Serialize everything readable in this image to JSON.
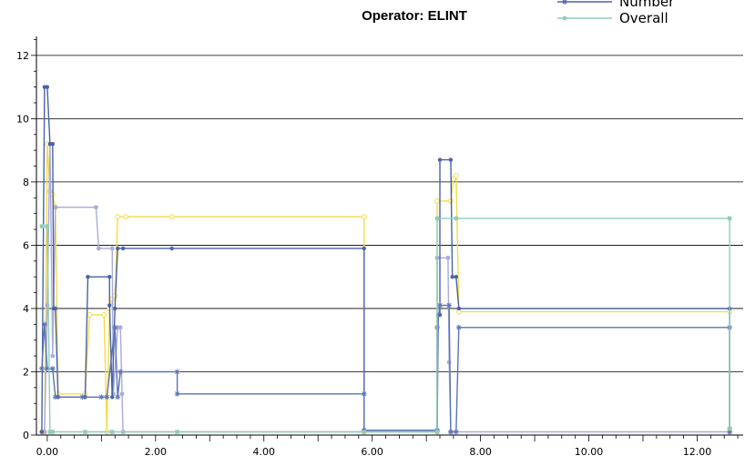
{
  "chart_data": {
    "type": "line",
    "title": "Operator: ELINT",
    "xlabel": "",
    "ylabel": "",
    "xlim": [
      -0.2,
      12.85
    ],
    "ylim": [
      0,
      12.6
    ],
    "grid": "horizontal",
    "legend_placement": "top-right",
    "x_ticks": [
      0,
      2,
      4,
      6,
      8,
      10,
      12
    ],
    "x_tick_labels": [
      "0.00",
      "2.00",
      "4.00",
      "6.00",
      "8.00",
      "10.00",
      "12.00"
    ],
    "y_ticks": [
      0,
      2,
      4,
      6,
      8,
      10,
      12
    ],
    "y_tick_labels": [
      "0",
      "2",
      "4",
      "6",
      "8",
      "10",
      "12"
    ],
    "legend": [
      {
        "label": "Number",
        "color": "#4a62a8",
        "marker": "star"
      },
      {
        "label": "Overall",
        "color": "#8ecdbb",
        "marker": "circle"
      }
    ],
    "series": [
      {
        "color": "#f2dc4a",
        "marker": "circle-open",
        "points": [
          [
            -0.1,
            0.1
          ],
          [
            -0.05,
            0.1
          ],
          [
            0,
            9.2
          ],
          [
            0.05,
            7.7
          ],
          [
            0.1,
            7.6
          ],
          [
            0.15,
            7.2
          ],
          [
            0.2,
            1.3
          ],
          [
            0.7,
            1.3
          ],
          [
            0.78,
            3.8
          ],
          [
            1.05,
            3.8
          ],
          [
            1.1,
            0.1
          ],
          [
            1.15,
            4.0
          ],
          [
            1.2,
            4.3
          ],
          [
            1.25,
            4.4
          ],
          [
            1.3,
            6.9
          ],
          [
            1.45,
            6.9
          ],
          [
            2.3,
            6.9
          ],
          [
            5.85,
            6.9
          ],
          [
            5.85,
            0.1
          ],
          [
            7.2,
            0.1
          ],
          [
            7.2,
            7.4
          ],
          [
            7.45,
            7.4
          ],
          [
            7.5,
            8.1
          ],
          [
            7.55,
            8.2
          ],
          [
            7.6,
            3.9
          ],
          [
            12.6,
            3.9
          ],
          [
            12.6,
            0.2
          ]
        ]
      },
      {
        "color": "#a9abd8",
        "marker": "circle",
        "points": [
          [
            -0.1,
            0.1
          ],
          [
            -0.05,
            0.1
          ],
          [
            0,
            4.1
          ],
          [
            0.05,
            9.2
          ],
          [
            0.1,
            2.5
          ],
          [
            0.15,
            7.2
          ],
          [
            0.9,
            7.2
          ],
          [
            0.95,
            5.9
          ],
          [
            1.2,
            5.9
          ],
          [
            1.22,
            1.3
          ],
          [
            1.3,
            3.4
          ],
          [
            1.35,
            3.4
          ],
          [
            1.38,
            1.3
          ],
          [
            1.4,
            0.1
          ],
          [
            7.2,
            0.1
          ],
          [
            7.2,
            5.6
          ],
          [
            7.4,
            5.6
          ],
          [
            7.42,
            2.3
          ],
          [
            7.45,
            0.1
          ],
          [
            12.6,
            0.1
          ]
        ]
      },
      {
        "color": "#4a62a8",
        "marker": "dot",
        "points": [
          [
            -0.1,
            0.1
          ],
          [
            -0.05,
            11.0
          ],
          [
            0,
            11.0
          ],
          [
            0.05,
            9.2
          ],
          [
            0.1,
            9.2
          ],
          [
            0.12,
            4.0
          ],
          [
            0.15,
            4.0
          ],
          [
            0.2,
            1.2
          ],
          [
            0.7,
            1.2
          ],
          [
            0.75,
            5.0
          ],
          [
            1.15,
            5.0
          ],
          [
            1.15,
            4.1
          ],
          [
            1.2,
            1.2
          ],
          [
            1.25,
            4.0
          ],
          [
            1.3,
            5.9
          ],
          [
            1.4,
            5.9
          ],
          [
            2.3,
            5.9
          ],
          [
            5.85,
            5.9
          ],
          [
            5.85,
            0.15
          ],
          [
            7.2,
            0.15
          ],
          [
            7.22,
            3.8
          ],
          [
            7.25,
            3.8
          ],
          [
            7.25,
            8.7
          ],
          [
            7.45,
            8.7
          ],
          [
            7.48,
            5.0
          ],
          [
            7.55,
            5.0
          ],
          [
            7.6,
            4.0
          ],
          [
            12.6,
            4.0
          ],
          [
            12.6,
            0.2
          ]
        ]
      },
      {
        "color": "#5b73b5",
        "marker": "star",
        "points": [
          [
            -0.1,
            2.1
          ],
          [
            -0.05,
            3.5
          ],
          [
            0,
            2.1
          ],
          [
            0.1,
            2.1
          ],
          [
            0.15,
            1.2
          ],
          [
            0.65,
            1.2
          ],
          [
            1.0,
            1.2
          ],
          [
            1.1,
            1.2
          ],
          [
            1.25,
            3.4
          ],
          [
            1.3,
            1.2
          ],
          [
            1.35,
            2.0
          ],
          [
            2.4,
            2.0
          ],
          [
            2.4,
            1.3
          ],
          [
            5.85,
            1.3
          ],
          [
            5.85,
            0.15
          ],
          [
            7.2,
            0.15
          ],
          [
            7.2,
            3.4
          ],
          [
            7.25,
            4.1
          ],
          [
            7.42,
            4.1
          ],
          [
            7.45,
            0.1
          ],
          [
            7.55,
            0.1
          ],
          [
            7.6,
            3.4
          ],
          [
            12.6,
            3.4
          ],
          [
            12.6,
            0.1
          ]
        ]
      },
      {
        "color": "#8ecdbb",
        "marker": "square",
        "points": [
          [
            -0.1,
            6.6
          ],
          [
            0,
            6.6
          ],
          [
            0.05,
            0.1
          ],
          [
            0.1,
            0.1
          ],
          [
            0.7,
            0.1
          ],
          [
            1.2,
            0.1
          ],
          [
            2.4,
            0.1
          ],
          [
            5.85,
            0.1
          ],
          [
            7.2,
            0.1
          ],
          [
            7.2,
            6.85
          ],
          [
            7.55,
            6.85
          ],
          [
            12.6,
            6.85
          ],
          [
            12.6,
            0.2
          ]
        ]
      }
    ]
  }
}
